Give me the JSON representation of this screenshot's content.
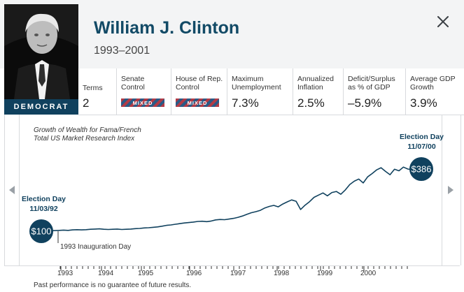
{
  "president": {
    "name": "William J. Clinton",
    "years": "1993–2001",
    "party": "DEMOCRAT"
  },
  "stats": [
    {
      "label": "Terms",
      "value": "2"
    },
    {
      "label": "Senate\nControl",
      "badge": "MIXED"
    },
    {
      "label": "House of Rep.\nControl",
      "badge": "MIXED"
    },
    {
      "label": "Maximum\nUnemployment",
      "value": "7.3%"
    },
    {
      "label": "Annualized\nInflation",
      "value": "2.5%"
    },
    {
      "label": "Deficit/Surplus\nas % of GDP",
      "value": "–5.9%"
    },
    {
      "label": "Average GDP\nGrowth",
      "value": "3.9%"
    }
  ],
  "chart_caption": "Growth of Wealth for Fama/French\nTotal US Market Research Index",
  "events": {
    "start": {
      "title": "Election Day",
      "date": "11/03/92",
      "value": "$100"
    },
    "end": {
      "title": "Election Day",
      "date": "11/07/00",
      "value": "$386"
    },
    "inauguration": "1993 Inauguration Day"
  },
  "x_axis_years": [
    "1993",
    "1994",
    "1995",
    "1996",
    "1997",
    "1998",
    "1999",
    "2000"
  ],
  "disclaimer": "Past performance is no guarantee of future results.",
  "colors": {
    "brand": "#10415e",
    "title": "#124a66",
    "line": "#10415e"
  },
  "chart_data": {
    "type": "line",
    "title": "Growth of Wealth for Fama/French Total US Market Research Index",
    "x_start": "1992-11",
    "x_end": "2000-11",
    "x_ticks": [
      "1993",
      "1994",
      "1995",
      "1996",
      "1997",
      "1998",
      "1999",
      "2000"
    ],
    "series": [
      {
        "values": [
          100,
          101,
          103,
          103,
          104,
          105,
          104,
          106,
          107,
          106,
          107,
          109,
          110,
          111,
          109,
          108,
          109,
          110,
          108,
          109,
          110,
          112,
          113,
          115,
          116,
          118,
          120,
          123,
          127,
          129,
          132,
          135,
          138,
          140,
          142,
          145,
          146,
          144,
          147,
          152,
          154,
          153,
          156,
          159,
          164,
          170,
          178,
          185,
          190,
          196,
          207,
          214,
          219,
          212,
          225,
          235,
          244,
          238,
          200,
          220,
          236,
          256,
          266,
          276,
          263,
          278,
          283,
          270,
          290,
          315,
          330,
          340,
          322,
          350,
          365,
          382,
          392,
          375,
          360,
          385,
          378,
          395,
          386,
          383,
          386,
          386
        ]
      }
    ]
  }
}
